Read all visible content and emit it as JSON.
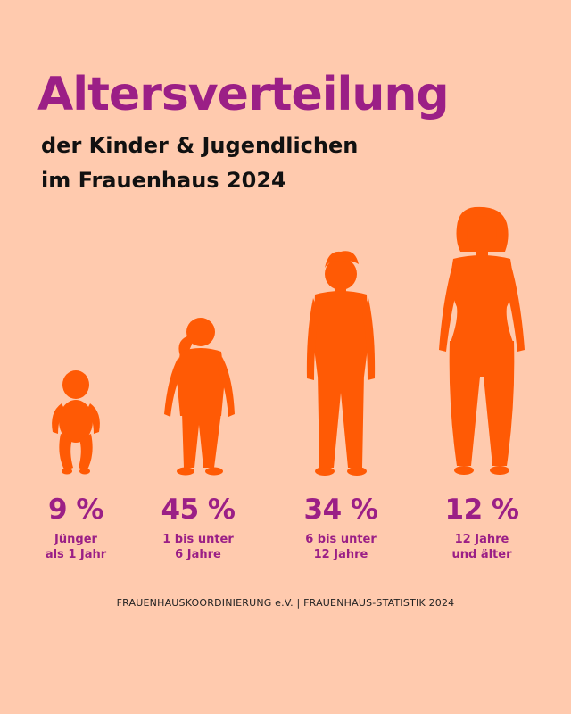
{
  "title": "Altersverteilung",
  "subtitle_line1": "der Kinder & Jugendlichen",
  "subtitle_line2": "im Frauenhaus 2024",
  "source": "FRAUENHAUSKOORDINIERUNG e.V. | FRAUENHAUS-STATISTIK 2024",
  "colors": {
    "figure": "#ff5a05",
    "accent": "#9b1f86",
    "background": "#ffcaae"
  },
  "chart_data": {
    "type": "bar",
    "title": "Altersverteilung der Kinder & Jugendlichen im Frauenhaus 2024",
    "categories": [
      "Jünger als 1 Jahr",
      "1 bis unter 6 Jahre",
      "6 bis unter 12 Jahre",
      "12 Jahre und älter"
    ],
    "values": [
      9,
      45,
      34,
      12
    ],
    "value_labels": [
      "9 %",
      "45 %",
      "34 %",
      "12 %"
    ],
    "label_lines": [
      "Jünger\nals 1 Jahr",
      "1 bis unter\n6 Jahre",
      "6 bis unter\n12 Jahre",
      "12 Jahre\nund älter"
    ],
    "icons": [
      "baby-silhouette-icon",
      "child-silhouette-icon",
      "boy-silhouette-icon",
      "teen-girl-silhouette-icon"
    ]
  }
}
